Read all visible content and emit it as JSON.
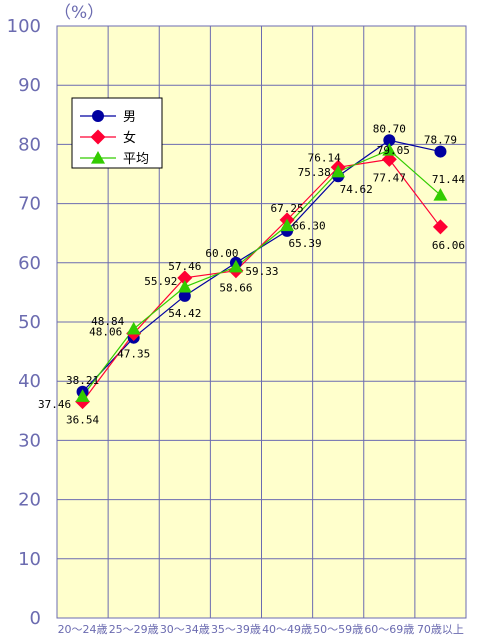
{
  "chart_data": {
    "type": "line",
    "unit_label": "（%）",
    "ylim": [
      0,
      100
    ],
    "yticks": [
      "0",
      "10",
      "20",
      "30",
      "40",
      "50",
      "60",
      "70",
      "80",
      "90",
      "100"
    ],
    "categories": [
      "20～24歳",
      "25～29歳",
      "30～34歳",
      "35～39歳",
      "40～49歳",
      "50～59歳",
      "60～69歳",
      "70歳以上"
    ],
    "grid": true,
    "legend_position": "upper-left",
    "series": [
      {
        "name": "男",
        "color": "#0000a0",
        "marker": "circle",
        "values": [
          38.21,
          47.35,
          54.42,
          60.0,
          65.39,
          74.62,
          80.7,
          78.79
        ],
        "labels": [
          "38.21",
          "47.35",
          "54.42",
          "60.00",
          "65.39",
          "74.62",
          "80.70",
          "78.79"
        ]
      },
      {
        "name": "女",
        "color": "#ff0033",
        "marker": "diamond",
        "values": [
          36.54,
          48.06,
          57.46,
          58.66,
          67.25,
          76.14,
          77.47,
          66.06
        ],
        "labels": [
          "36.54",
          "48.06",
          "57.46",
          "58.66",
          "67.25",
          "76.14",
          "77.47",
          "66.06"
        ]
      },
      {
        "name": "平均",
        "color": "#33cc00",
        "marker": "triangle",
        "values": [
          37.46,
          48.84,
          55.92,
          59.33,
          66.3,
          75.38,
          79.05,
          71.44
        ],
        "labels": [
          "37.46",
          "48.84",
          "55.92",
          "59.33",
          "66.30",
          "75.38",
          "79.05",
          "71.44"
        ]
      }
    ]
  }
}
